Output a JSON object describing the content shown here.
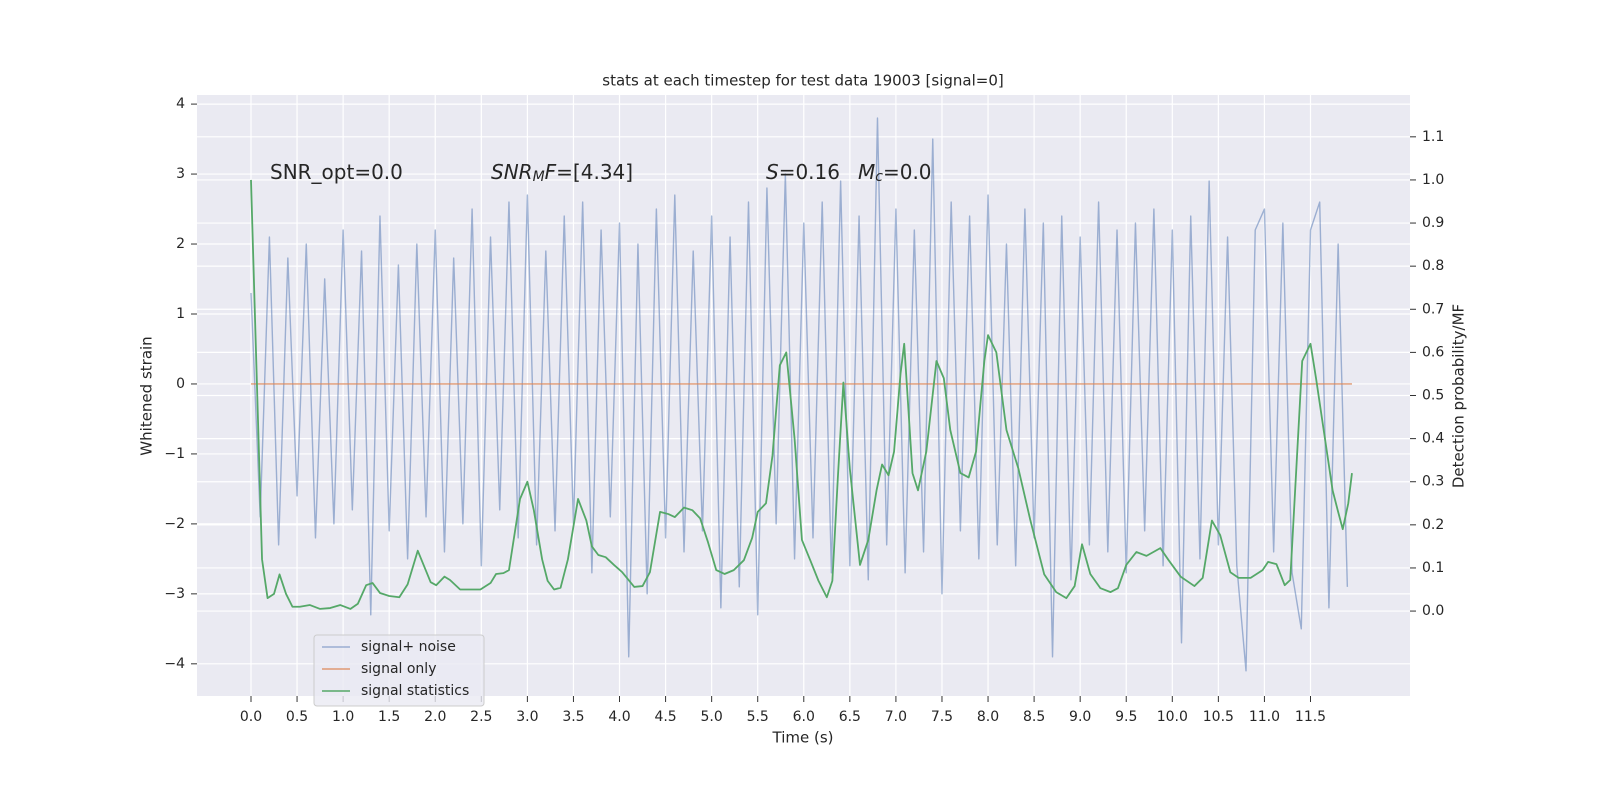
{
  "chart_data": {
    "type": "line",
    "title": "stats at each timestep for test data 19003 [signal=0]",
    "xlabel": "Time (s)",
    "ylabel": "Whitened strain",
    "y2label": "Detection probability/MF",
    "xlim": [
      -0.586,
      12.58
    ],
    "ylim": [
      -4.46,
      4.13
    ],
    "y2lim": [
      -0.197,
      1.197
    ],
    "xticks": [
      {
        "value": 0,
        "label": "0.0"
      },
      0.5,
      {
        "value": 1,
        "label": "1.0"
      },
      1.5,
      {
        "value": 2,
        "label": "2.0"
      },
      2.5,
      {
        "value": 3,
        "label": "3.0"
      },
      3.5,
      {
        "value": 4,
        "label": "4.0"
      },
      4.5,
      {
        "value": 5,
        "label": "5.0"
      },
      5.5,
      {
        "value": 6,
        "label": "6.0"
      },
      6.5,
      {
        "value": 7,
        "label": "7.0"
      },
      7.5,
      {
        "value": 8,
        "label": "8.0"
      },
      8.5,
      {
        "value": 9,
        "label": "9.0"
      },
      9.5,
      {
        "value": 10,
        "label": "10.0"
      },
      10.5,
      {
        "value": 11,
        "label": "11.0"
      },
      11.5
    ],
    "yticks": [
      {
        "value": -4,
        "label": "−4"
      },
      {
        "value": -3,
        "label": "−3"
      },
      {
        "value": -2,
        "label": "−2"
      },
      {
        "value": -1,
        "label": "−1"
      },
      0,
      1,
      2,
      3,
      4
    ],
    "y2ticks": [
      {
        "value": 0,
        "label": "0.0"
      },
      0.1,
      0.2,
      0.3,
      0.4,
      0.5,
      0.6,
      0.7,
      0.8,
      0.9,
      {
        "value": 1,
        "label": "1.0"
      },
      1.1
    ],
    "grid": true,
    "legend": "lower left",
    "annotations": [
      {
        "parts": [
          {
            "text": "SNR_opt=0.0",
            "style": "normal"
          }
        ]
      },
      {
        "parts": [
          {
            "text": "SNR",
            "style": "italic"
          },
          {
            "text": "M",
            "style": "sub"
          },
          {
            "text": "F",
            "style": "italic"
          },
          {
            "text": "=[4.34]",
            "style": "normal"
          }
        ]
      },
      {
        "parts": [
          {
            "text": "S",
            "style": "italic"
          },
          {
            "text": "=0.16",
            "style": "normal"
          }
        ]
      },
      {
        "parts": [
          {
            "text": "M",
            "style": "italic"
          },
          {
            "text": "c",
            "style": "sub"
          },
          {
            "text": "=0.0",
            "style": "normal"
          }
        ]
      }
    ],
    "series": [
      {
        "name": "signal+ noise",
        "color": "#4c72b0",
        "opacity": 0.5,
        "axis": "y",
        "x": [
          0.0,
          0.1,
          0.2,
          0.3,
          0.4,
          0.5,
          0.6,
          0.7,
          0.8,
          0.9,
          1.0,
          1.1,
          1.2,
          1.3,
          1.4,
          1.5,
          1.6,
          1.7,
          1.8,
          1.9,
          2.0,
          2.1,
          2.2,
          2.3,
          2.4,
          2.5,
          2.6,
          2.7,
          2.8,
          2.9,
          3.0,
          3.1,
          3.2,
          3.3,
          3.4,
          3.5,
          3.6,
          3.7,
          3.8,
          3.9,
          4.0,
          4.1,
          4.2,
          4.3,
          4.4,
          4.5,
          4.6,
          4.7,
          4.8,
          4.9,
          5.0,
          5.1,
          5.2,
          5.3,
          5.4,
          5.5,
          5.6,
          5.7,
          5.8,
          5.9,
          6.0,
          6.1,
          6.2,
          6.3,
          6.4,
          6.5,
          6.6,
          6.7,
          6.8,
          6.9,
          7.0,
          7.1,
          7.2,
          7.3,
          7.4,
          7.5,
          7.6,
          7.7,
          7.8,
          7.9,
          8.0,
          8.1,
          8.2,
          8.3,
          8.4,
          8.5,
          8.6,
          8.7,
          8.8,
          8.9,
          9.0,
          9.1,
          9.2,
          9.3,
          9.4,
          9.5,
          9.6,
          9.7,
          9.8,
          9.9,
          10.0,
          10.1,
          10.2,
          10.3,
          10.4,
          10.5,
          10.6,
          10.7,
          10.8,
          10.9,
          11.0,
          11.1,
          11.2,
          11.3,
          11.4,
          11.5,
          11.6,
          11.7,
          11.8,
          11.9
        ],
        "values": [
          1.3,
          -1.9,
          2.1,
          -2.3,
          1.8,
          -1.6,
          2.0,
          -2.2,
          1.5,
          -2.0,
          2.2,
          -1.8,
          1.9,
          -3.3,
          2.4,
          -2.1,
          1.7,
          -2.5,
          2.0,
          -1.9,
          2.2,
          -2.4,
          1.8,
          -2.0,
          2.5,
          -2.6,
          2.1,
          -1.8,
          2.6,
          -2.2,
          2.7,
          -2.3,
          1.9,
          -2.1,
          2.4,
          -2.0,
          2.6,
          -2.7,
          2.2,
          -1.9,
          2.3,
          -3.9,
          2.0,
          -3.0,
          2.5,
          -2.2,
          2.7,
          -2.4,
          1.9,
          -2.1,
          2.4,
          -3.2,
          2.1,
          -2.9,
          2.6,
          -3.3,
          2.8,
          -2.0,
          3.0,
          -2.5,
          2.3,
          -2.2,
          2.6,
          -2.7,
          2.9,
          -2.6,
          2.4,
          -2.8,
          3.8,
          -2.3,
          2.5,
          -2.7,
          2.2,
          -2.4,
          3.5,
          -3.0,
          2.6,
          -2.1,
          2.4,
          -2.5,
          2.7,
          -2.3,
          2.0,
          -2.6,
          2.5,
          -2.2,
          2.3,
          -3.9,
          2.4,
          -2.8,
          2.1,
          -2.3,
          2.6,
          -2.4,
          2.2,
          -2.7,
          2.3,
          -2.1,
          2.5,
          -2.6,
          2.2,
          -3.7,
          2.4,
          -2.5,
          2.9,
          -2.3,
          2.1,
          -2.6,
          -4.1,
          2.2,
          2.5,
          -2.4,
          2.3,
          -2.7,
          -3.5,
          2.2,
          2.6,
          -3.2,
          2.0,
          -2.9
        ]
      },
      {
        "name": "signal only",
        "color": "#dd8452",
        "opacity": 0.8,
        "axis": "y",
        "x": [
          0.0,
          11.95
        ],
        "values": [
          0,
          0
        ]
      },
      {
        "name": "signal statistics",
        "color": "#55a868",
        "opacity": 1,
        "axis": "y2",
        "x": [
          0.0,
          0.12,
          0.18,
          0.25,
          0.31,
          0.38,
          0.45,
          0.53,
          0.64,
          0.75,
          0.86,
          0.97,
          1.08,
          1.16,
          1.25,
          1.32,
          1.4,
          1.5,
          1.61,
          1.7,
          1.81,
          1.95,
          2.01,
          2.1,
          2.16,
          2.27,
          2.38,
          2.49,
          2.6,
          2.66,
          2.74,
          2.8,
          2.92,
          3.0,
          3.07,
          3.16,
          3.22,
          3.29,
          3.36,
          3.44,
          3.55,
          3.64,
          3.7,
          3.77,
          3.85,
          3.94,
          4.03,
          4.16,
          4.25,
          4.33,
          4.44,
          4.53,
          4.6,
          4.7,
          4.79,
          4.875,
          4.96,
          5.05,
          5.14,
          5.24,
          5.35,
          5.44,
          5.5,
          5.59,
          5.66,
          5.74,
          5.81,
          5.9,
          5.98,
          6.07,
          6.16,
          6.25,
          6.31,
          6.37,
          6.43,
          6.5,
          6.61,
          6.7,
          6.79,
          6.85,
          6.92,
          6.98,
          7.05,
          7.09,
          7.18,
          7.24,
          7.33,
          7.44,
          7.52,
          7.59,
          7.7,
          7.79,
          7.87,
          7.96,
          8.0,
          8.09,
          8.2,
          8.33,
          8.46,
          8.61,
          8.74,
          8.85,
          8.94,
          9.02,
          9.11,
          9.22,
          9.33,
          9.41,
          9.5,
          9.61,
          9.72,
          9.87,
          9.96,
          10.09,
          10.24,
          10.33,
          10.43,
          10.52,
          10.63,
          10.72,
          10.85,
          10.98,
          11.04,
          11.13,
          11.22,
          11.28,
          11.41,
          11.5,
          11.56,
          11.74,
          11.8,
          11.85,
          11.91,
          11.95
        ],
        "values": [
          1.0,
          0.12,
          0.03,
          0.04,
          0.085,
          0.04,
          0.01,
          0.01,
          0.014,
          0.005,
          0.007,
          0.014,
          0.005,
          0.017,
          0.06,
          0.065,
          0.042,
          0.035,
          0.032,
          0.062,
          0.14,
          0.067,
          0.06,
          0.08,
          0.072,
          0.05,
          0.05,
          0.05,
          0.065,
          0.086,
          0.088,
          0.095,
          0.26,
          0.3,
          0.234,
          0.12,
          0.07,
          0.05,
          0.054,
          0.12,
          0.26,
          0.21,
          0.15,
          0.13,
          0.125,
          0.107,
          0.09,
          0.056,
          0.058,
          0.09,
          0.23,
          0.225,
          0.218,
          0.24,
          0.234,
          0.215,
          0.16,
          0.095,
          0.086,
          0.095,
          0.118,
          0.17,
          0.23,
          0.25,
          0.36,
          0.57,
          0.6,
          0.4,
          0.165,
          0.118,
          0.07,
          0.032,
          0.07,
          0.31,
          0.53,
          0.33,
          0.107,
          0.165,
          0.28,
          0.34,
          0.315,
          0.37,
          0.55,
          0.62,
          0.32,
          0.28,
          0.37,
          0.58,
          0.54,
          0.42,
          0.32,
          0.31,
          0.37,
          0.58,
          0.64,
          0.6,
          0.42,
          0.33,
          0.21,
          0.085,
          0.044,
          0.03,
          0.058,
          0.155,
          0.086,
          0.053,
          0.044,
          0.053,
          0.107,
          0.137,
          0.128,
          0.146,
          0.118,
          0.08,
          0.058,
          0.077,
          0.21,
          0.176,
          0.09,
          0.077,
          0.077,
          0.095,
          0.114,
          0.109,
          0.06,
          0.072,
          0.58,
          0.62,
          0.54,
          0.28,
          0.23,
          0.19,
          0.25,
          0.32
        ]
      }
    ]
  }
}
